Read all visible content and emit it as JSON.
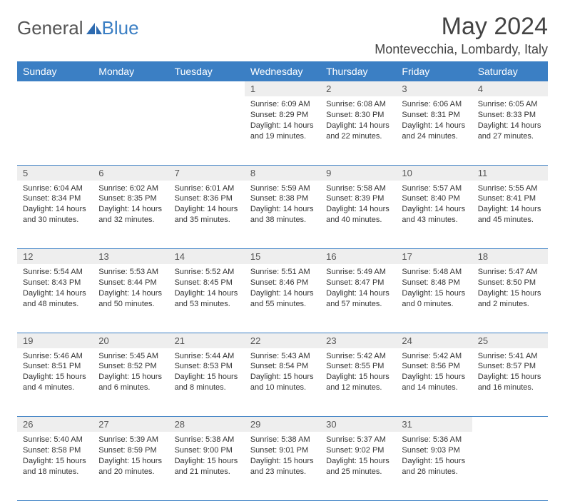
{
  "logo": {
    "general": "General",
    "blue": "Blue"
  },
  "header": {
    "month_title": "May 2024",
    "location": "Montevecchia, Lombardy, Italy"
  },
  "colors": {
    "header_bg": "#3b7fc4",
    "header_text": "#ffffff",
    "daynum_bg": "#eeeeee",
    "row_divider": "#3b7fc4",
    "body_text": "#333333",
    "title_text": "#444444"
  },
  "weekdays": [
    "Sunday",
    "Monday",
    "Tuesday",
    "Wednesday",
    "Thursday",
    "Friday",
    "Saturday"
  ],
  "weeks": [
    {
      "daynums": [
        "",
        "",
        "",
        "1",
        "2",
        "3",
        "4"
      ],
      "cells": [
        {
          "empty": true
        },
        {
          "empty": true
        },
        {
          "empty": true
        },
        {
          "sunrise": "Sunrise: 6:09 AM",
          "sunset": "Sunset: 8:29 PM",
          "daylight1": "Daylight: 14 hours",
          "daylight2": "and 19 minutes."
        },
        {
          "sunrise": "Sunrise: 6:08 AM",
          "sunset": "Sunset: 8:30 PM",
          "daylight1": "Daylight: 14 hours",
          "daylight2": "and 22 minutes."
        },
        {
          "sunrise": "Sunrise: 6:06 AM",
          "sunset": "Sunset: 8:31 PM",
          "daylight1": "Daylight: 14 hours",
          "daylight2": "and 24 minutes."
        },
        {
          "sunrise": "Sunrise: 6:05 AM",
          "sunset": "Sunset: 8:33 PM",
          "daylight1": "Daylight: 14 hours",
          "daylight2": "and 27 minutes."
        }
      ]
    },
    {
      "daynums": [
        "5",
        "6",
        "7",
        "8",
        "9",
        "10",
        "11"
      ],
      "cells": [
        {
          "sunrise": "Sunrise: 6:04 AM",
          "sunset": "Sunset: 8:34 PM",
          "daylight1": "Daylight: 14 hours",
          "daylight2": "and 30 minutes."
        },
        {
          "sunrise": "Sunrise: 6:02 AM",
          "sunset": "Sunset: 8:35 PM",
          "daylight1": "Daylight: 14 hours",
          "daylight2": "and 32 minutes."
        },
        {
          "sunrise": "Sunrise: 6:01 AM",
          "sunset": "Sunset: 8:36 PM",
          "daylight1": "Daylight: 14 hours",
          "daylight2": "and 35 minutes."
        },
        {
          "sunrise": "Sunrise: 5:59 AM",
          "sunset": "Sunset: 8:38 PM",
          "daylight1": "Daylight: 14 hours",
          "daylight2": "and 38 minutes."
        },
        {
          "sunrise": "Sunrise: 5:58 AM",
          "sunset": "Sunset: 8:39 PM",
          "daylight1": "Daylight: 14 hours",
          "daylight2": "and 40 minutes."
        },
        {
          "sunrise": "Sunrise: 5:57 AM",
          "sunset": "Sunset: 8:40 PM",
          "daylight1": "Daylight: 14 hours",
          "daylight2": "and 43 minutes."
        },
        {
          "sunrise": "Sunrise: 5:55 AM",
          "sunset": "Sunset: 8:41 PM",
          "daylight1": "Daylight: 14 hours",
          "daylight2": "and 45 minutes."
        }
      ]
    },
    {
      "daynums": [
        "12",
        "13",
        "14",
        "15",
        "16",
        "17",
        "18"
      ],
      "cells": [
        {
          "sunrise": "Sunrise: 5:54 AM",
          "sunset": "Sunset: 8:43 PM",
          "daylight1": "Daylight: 14 hours",
          "daylight2": "and 48 minutes."
        },
        {
          "sunrise": "Sunrise: 5:53 AM",
          "sunset": "Sunset: 8:44 PM",
          "daylight1": "Daylight: 14 hours",
          "daylight2": "and 50 minutes."
        },
        {
          "sunrise": "Sunrise: 5:52 AM",
          "sunset": "Sunset: 8:45 PM",
          "daylight1": "Daylight: 14 hours",
          "daylight2": "and 53 minutes."
        },
        {
          "sunrise": "Sunrise: 5:51 AM",
          "sunset": "Sunset: 8:46 PM",
          "daylight1": "Daylight: 14 hours",
          "daylight2": "and 55 minutes."
        },
        {
          "sunrise": "Sunrise: 5:49 AM",
          "sunset": "Sunset: 8:47 PM",
          "daylight1": "Daylight: 14 hours",
          "daylight2": "and 57 minutes."
        },
        {
          "sunrise": "Sunrise: 5:48 AM",
          "sunset": "Sunset: 8:48 PM",
          "daylight1": "Daylight: 15 hours",
          "daylight2": "and 0 minutes."
        },
        {
          "sunrise": "Sunrise: 5:47 AM",
          "sunset": "Sunset: 8:50 PM",
          "daylight1": "Daylight: 15 hours",
          "daylight2": "and 2 minutes."
        }
      ]
    },
    {
      "daynums": [
        "19",
        "20",
        "21",
        "22",
        "23",
        "24",
        "25"
      ],
      "cells": [
        {
          "sunrise": "Sunrise: 5:46 AM",
          "sunset": "Sunset: 8:51 PM",
          "daylight1": "Daylight: 15 hours",
          "daylight2": "and 4 minutes."
        },
        {
          "sunrise": "Sunrise: 5:45 AM",
          "sunset": "Sunset: 8:52 PM",
          "daylight1": "Daylight: 15 hours",
          "daylight2": "and 6 minutes."
        },
        {
          "sunrise": "Sunrise: 5:44 AM",
          "sunset": "Sunset: 8:53 PM",
          "daylight1": "Daylight: 15 hours",
          "daylight2": "and 8 minutes."
        },
        {
          "sunrise": "Sunrise: 5:43 AM",
          "sunset": "Sunset: 8:54 PM",
          "daylight1": "Daylight: 15 hours",
          "daylight2": "and 10 minutes."
        },
        {
          "sunrise": "Sunrise: 5:42 AM",
          "sunset": "Sunset: 8:55 PM",
          "daylight1": "Daylight: 15 hours",
          "daylight2": "and 12 minutes."
        },
        {
          "sunrise": "Sunrise: 5:42 AM",
          "sunset": "Sunset: 8:56 PM",
          "daylight1": "Daylight: 15 hours",
          "daylight2": "and 14 minutes."
        },
        {
          "sunrise": "Sunrise: 5:41 AM",
          "sunset": "Sunset: 8:57 PM",
          "daylight1": "Daylight: 15 hours",
          "daylight2": "and 16 minutes."
        }
      ]
    },
    {
      "daynums": [
        "26",
        "27",
        "28",
        "29",
        "30",
        "31",
        ""
      ],
      "cells": [
        {
          "sunrise": "Sunrise: 5:40 AM",
          "sunset": "Sunset: 8:58 PM",
          "daylight1": "Daylight: 15 hours",
          "daylight2": "and 18 minutes."
        },
        {
          "sunrise": "Sunrise: 5:39 AM",
          "sunset": "Sunset: 8:59 PM",
          "daylight1": "Daylight: 15 hours",
          "daylight2": "and 20 minutes."
        },
        {
          "sunrise": "Sunrise: 5:38 AM",
          "sunset": "Sunset: 9:00 PM",
          "daylight1": "Daylight: 15 hours",
          "daylight2": "and 21 minutes."
        },
        {
          "sunrise": "Sunrise: 5:38 AM",
          "sunset": "Sunset: 9:01 PM",
          "daylight1": "Daylight: 15 hours",
          "daylight2": "and 23 minutes."
        },
        {
          "sunrise": "Sunrise: 5:37 AM",
          "sunset": "Sunset: 9:02 PM",
          "daylight1": "Daylight: 15 hours",
          "daylight2": "and 25 minutes."
        },
        {
          "sunrise": "Sunrise: 5:36 AM",
          "sunset": "Sunset: 9:03 PM",
          "daylight1": "Daylight: 15 hours",
          "daylight2": "and 26 minutes."
        },
        {
          "empty": true
        }
      ]
    }
  ]
}
